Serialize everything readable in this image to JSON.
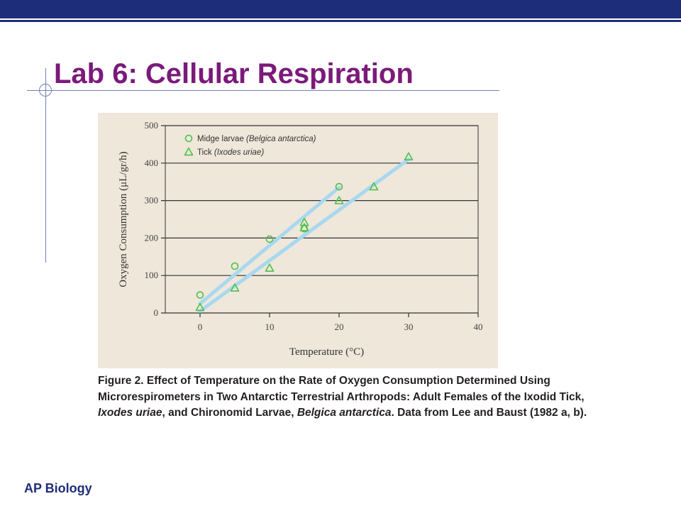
{
  "slide": {
    "title": "Lab 6: Cellular Respiration",
    "footer": "AP Biology"
  },
  "colors": {
    "top_bar": "#1d2d7a",
    "title": "#7b1a7b",
    "figure_background": "#efe7da",
    "marker": "#4cc14c",
    "trendline": "#a8d8f0",
    "gridline": "#333333"
  },
  "caption": {
    "p1": "Figure 2. Effect of Temperature on the Rate of Oxygen Consumption Determined Using Microrespirometers in Two Antarctic Terrestrial Arthropods: Adult Females of the Ixodid Tick, ",
    "i1": "Ixodes uriae",
    "p2": ", and Chironomid Larvae, ",
    "i2": "Belgica antarctica",
    "p3": ". Data from Lee and Baust (1982 a, b)."
  },
  "chart_data": {
    "type": "scatter",
    "title": "",
    "xlabel": "Temperature (°C)",
    "ylabel": "Oxygen Consumption (μL/gr/h)",
    "xlim": [
      -5,
      40
    ],
    "ylim": [
      0,
      500
    ],
    "x_ticks": [
      0,
      10,
      20,
      30,
      40
    ],
    "y_ticks": [
      0,
      100,
      200,
      300,
      400,
      500
    ],
    "grid": "horizontal",
    "legend_position": "top-left",
    "series": [
      {
        "name": "Midge larvae",
        "name_italic": "(Belgica antarctica)",
        "marker": "circle",
        "x": [
          0,
          5,
          10,
          15,
          20
        ],
        "y": [
          48,
          125,
          197,
          225,
          337
        ],
        "trendline": [
          [
            0,
            25
          ],
          [
            20,
            335
          ]
        ]
      },
      {
        "name": "Tick",
        "name_italic": "(Ixodes uriae)",
        "marker": "triangle",
        "x": [
          0,
          5,
          10,
          15,
          15,
          20,
          25,
          30
        ],
        "y": [
          15,
          67,
          120,
          228,
          242,
          300,
          337,
          417
        ],
        "trendline": [
          [
            0,
            5
          ],
          [
            30,
            410
          ]
        ]
      }
    ]
  }
}
